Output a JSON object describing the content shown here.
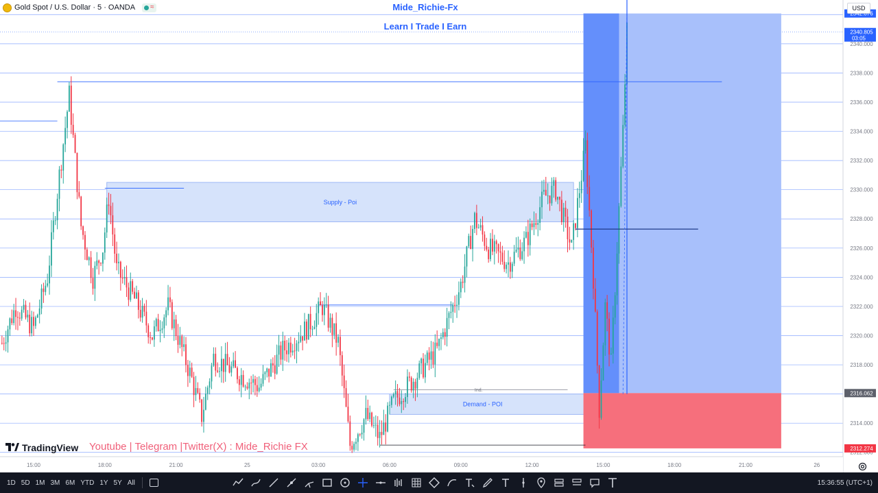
{
  "header": {
    "symbol": "Gold Spot / U.S. Dollar · 5 · OANDA",
    "status_icon": "market-open-dot-icon",
    "currency": "USD"
  },
  "overlay": {
    "title": "Mide_Richie-Fx",
    "subtitle": "Learn I Trade I Earn",
    "watermark": "TradingView",
    "social": "Youtube | Telegram |Twitter(X)  : Mide_Richie FX"
  },
  "annotations": {
    "supply": "Supply - Poi",
    "demand": "Demand - POI",
    "ind": "Ind."
  },
  "price_labels": {
    "target": "2342.076",
    "current": "2340.805",
    "countdown": "03:05",
    "entry": "2316.062",
    "stop": "2312.274"
  },
  "toolbar": {
    "timeframes": [
      "1D",
      "5D",
      "1M",
      "3M",
      "6M",
      "YTD",
      "1Y",
      "5Y",
      "All"
    ],
    "tools": [
      "trend-line-icon",
      "path-icon",
      "line-icon",
      "brush-icon",
      "pitchfork-icon",
      "rectangle-icon",
      "circle-icon",
      "crosshair-icon",
      "horizontal-line-icon",
      "bar-pattern-icon",
      "grid-icon",
      "polygon-icon",
      "curve-icon",
      "text-tool-icon",
      "pen-icon",
      "font-icon",
      "vertical-line-icon",
      "pin-icon",
      "long-position-icon",
      "short-position-icon",
      "comment-icon",
      "text-icon"
    ],
    "clock": "15:36:55 (UTC+1)"
  },
  "colors": {
    "accent": "#2962ff",
    "up": "#26a69a",
    "down": "#f23645",
    "target_zone": "#a8c0fb",
    "stop_zone": "#f66f7c",
    "zone_fill": "#d6e3fb"
  },
  "chart_data": {
    "type": "candlestick",
    "symbol": "XAUUSD",
    "timeframe": "5",
    "x_tick_labels": [
      "15:00",
      "18:00",
      "21:00",
      "25",
      "03:00",
      "06:00",
      "09:00",
      "12:00",
      "15:00",
      "18:00",
      "21:00",
      "26"
    ],
    "y_tick_labels": [
      "2312.000",
      "2314.000",
      "2316.000",
      "2318.000",
      "2320.000",
      "2322.000",
      "2324.000",
      "2326.000",
      "2328.000",
      "2330.000",
      "2332.000",
      "2334.000",
      "2336.000",
      "2338.000",
      "2340.000",
      "2342.000"
    ],
    "ylim": [
      2311.8,
      2343.0
    ],
    "close_path": [
      {
        "t": "2024-04-24 13:40",
        "price": 2319.5
      },
      {
        "t": "2024-04-24 14:15",
        "price": 2322.0
      },
      {
        "t": "2024-04-24 15:00",
        "price": 2320.5
      },
      {
        "t": "2024-04-24 15:35",
        "price": 2324.0
      },
      {
        "t": "2024-04-24 16:05",
        "price": 2331.0
      },
      {
        "t": "2024-04-24 16:30",
        "price": 2336.5
      },
      {
        "t": "2024-04-24 17:00",
        "price": 2327.5
      },
      {
        "t": "2024-04-24 17:30",
        "price": 2324.0
      },
      {
        "t": "2024-04-24 17:55",
        "price": 2326.0
      },
      {
        "t": "2024-04-24 18:10",
        "price": 2329.5
      },
      {
        "t": "2024-04-24 18:30",
        "price": 2324.5
      },
      {
        "t": "2024-04-24 19:15",
        "price": 2322.5
      },
      {
        "t": "2024-04-24 20:00",
        "price": 2320.0
      },
      {
        "t": "2024-04-24 20:40",
        "price": 2322.0
      },
      {
        "t": "2024-04-24 21:10",
        "price": 2319.5
      },
      {
        "t": "2024-04-24 21:40",
        "price": 2317.0
      },
      {
        "t": "2024-04-24 22:05",
        "price": 2314.5
      },
      {
        "t": "2024-04-24 22:35",
        "price": 2318.5
      },
      {
        "t": "2024-04-24 23:30",
        "price": 2317.5
      },
      {
        "t": "2024-04-25 00:30",
        "price": 2316.5
      },
      {
        "t": "2024-04-25 01:30",
        "price": 2319.0
      },
      {
        "t": "2024-04-25 02:30",
        "price": 2320.5
      },
      {
        "t": "2024-04-25 03:10",
        "price": 2322.0
      },
      {
        "t": "2024-04-25 03:50",
        "price": 2319.5
      },
      {
        "t": "2024-04-25 04:20",
        "price": 2312.5
      },
      {
        "t": "2024-04-25 05:00",
        "price": 2314.5
      },
      {
        "t": "2024-04-25 05:35",
        "price": 2313.0
      },
      {
        "t": "2024-04-25 06:10",
        "price": 2315.5
      },
      {
        "t": "2024-04-25 07:00",
        "price": 2317.0
      },
      {
        "t": "2024-04-25 08:00",
        "price": 2319.0
      },
      {
        "t": "2024-04-25 09:00",
        "price": 2323.5
      },
      {
        "t": "2024-04-25 09:35",
        "price": 2328.0
      },
      {
        "t": "2024-04-25 10:10",
        "price": 2326.0
      },
      {
        "t": "2024-04-25 11:00",
        "price": 2325.0
      },
      {
        "t": "2024-04-25 11:45",
        "price": 2326.5
      },
      {
        "t": "2024-04-25 12:30",
        "price": 2329.5
      },
      {
        "t": "2024-04-25 13:00",
        "price": 2330.0
      },
      {
        "t": "2024-04-25 13:40",
        "price": 2326.0
      },
      {
        "t": "2024-04-25 14:15",
        "price": 2333.0
      },
      {
        "t": "2024-04-25 14:35",
        "price": 2324.0
      },
      {
        "t": "2024-04-25 14:50",
        "price": 2315.0
      },
      {
        "t": "2024-04-25 15:05",
        "price": 2322.0
      },
      {
        "t": "2024-04-25 15:20",
        "price": 2318.0
      },
      {
        "t": "2024-04-25 15:35",
        "price": 2326.0
      },
      {
        "t": "2024-04-25 15:50",
        "price": 2334.0
      },
      {
        "t": "2024-04-25 16:00",
        "price": 2340.805
      }
    ],
    "supply_zone": {
      "label": "Supply - Poi",
      "price_range": [
        2327.8,
        2330.5
      ],
      "time_start": "2024-04-24 18:05",
      "time_end": "2024-04-25 13:45"
    },
    "demand_zone": {
      "label": "Demand - POI",
      "price_range": [
        2314.6,
        2316.0
      ],
      "time_start": "2024-04-25 06:00",
      "time_end": "2024-04-25 15:00"
    },
    "long_position": {
      "entry": 2316.062,
      "target": 2342.076,
      "stop": 2312.274,
      "time_start": "2024-04-25 14:10",
      "time_end": "2024-04-25 22:30"
    },
    "current_price": 2340.805
  }
}
